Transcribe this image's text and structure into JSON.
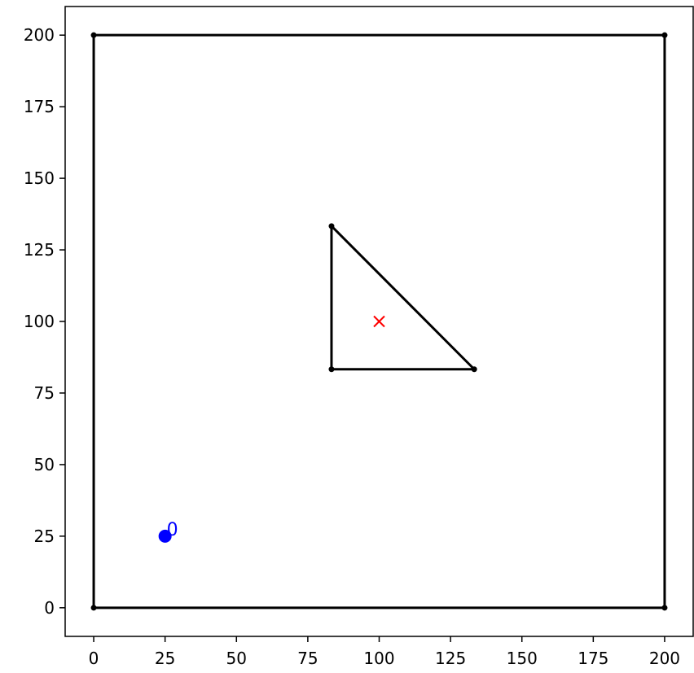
{
  "chart_data": {
    "type": "scatter",
    "title": "",
    "xlabel": "",
    "ylabel": "",
    "xlim": [
      -10,
      210
    ],
    "ylim": [
      -10,
      210
    ],
    "grid": false,
    "x_ticks": [
      0,
      25,
      50,
      75,
      100,
      125,
      150,
      175,
      200
    ],
    "y_ticks": [
      0,
      25,
      50,
      75,
      100,
      125,
      150,
      175,
      200
    ],
    "polygons": [
      {
        "vertices": [
          [
            0,
            0
          ],
          [
            200,
            0
          ],
          [
            200,
            200
          ],
          [
            0,
            200
          ]
        ],
        "color": "#000000"
      },
      {
        "vertices": [
          [
            83.3,
            83.3
          ],
          [
            133.3,
            83.3
          ],
          [
            83.3,
            133.3
          ]
        ],
        "color": "#000000"
      }
    ],
    "centroid_marker": {
      "x": 100,
      "y": 100,
      "marker": "x",
      "color": "#ff0000"
    },
    "points": [
      {
        "x": 25,
        "y": 25,
        "label": "0",
        "color": "#0000ff"
      }
    ]
  }
}
